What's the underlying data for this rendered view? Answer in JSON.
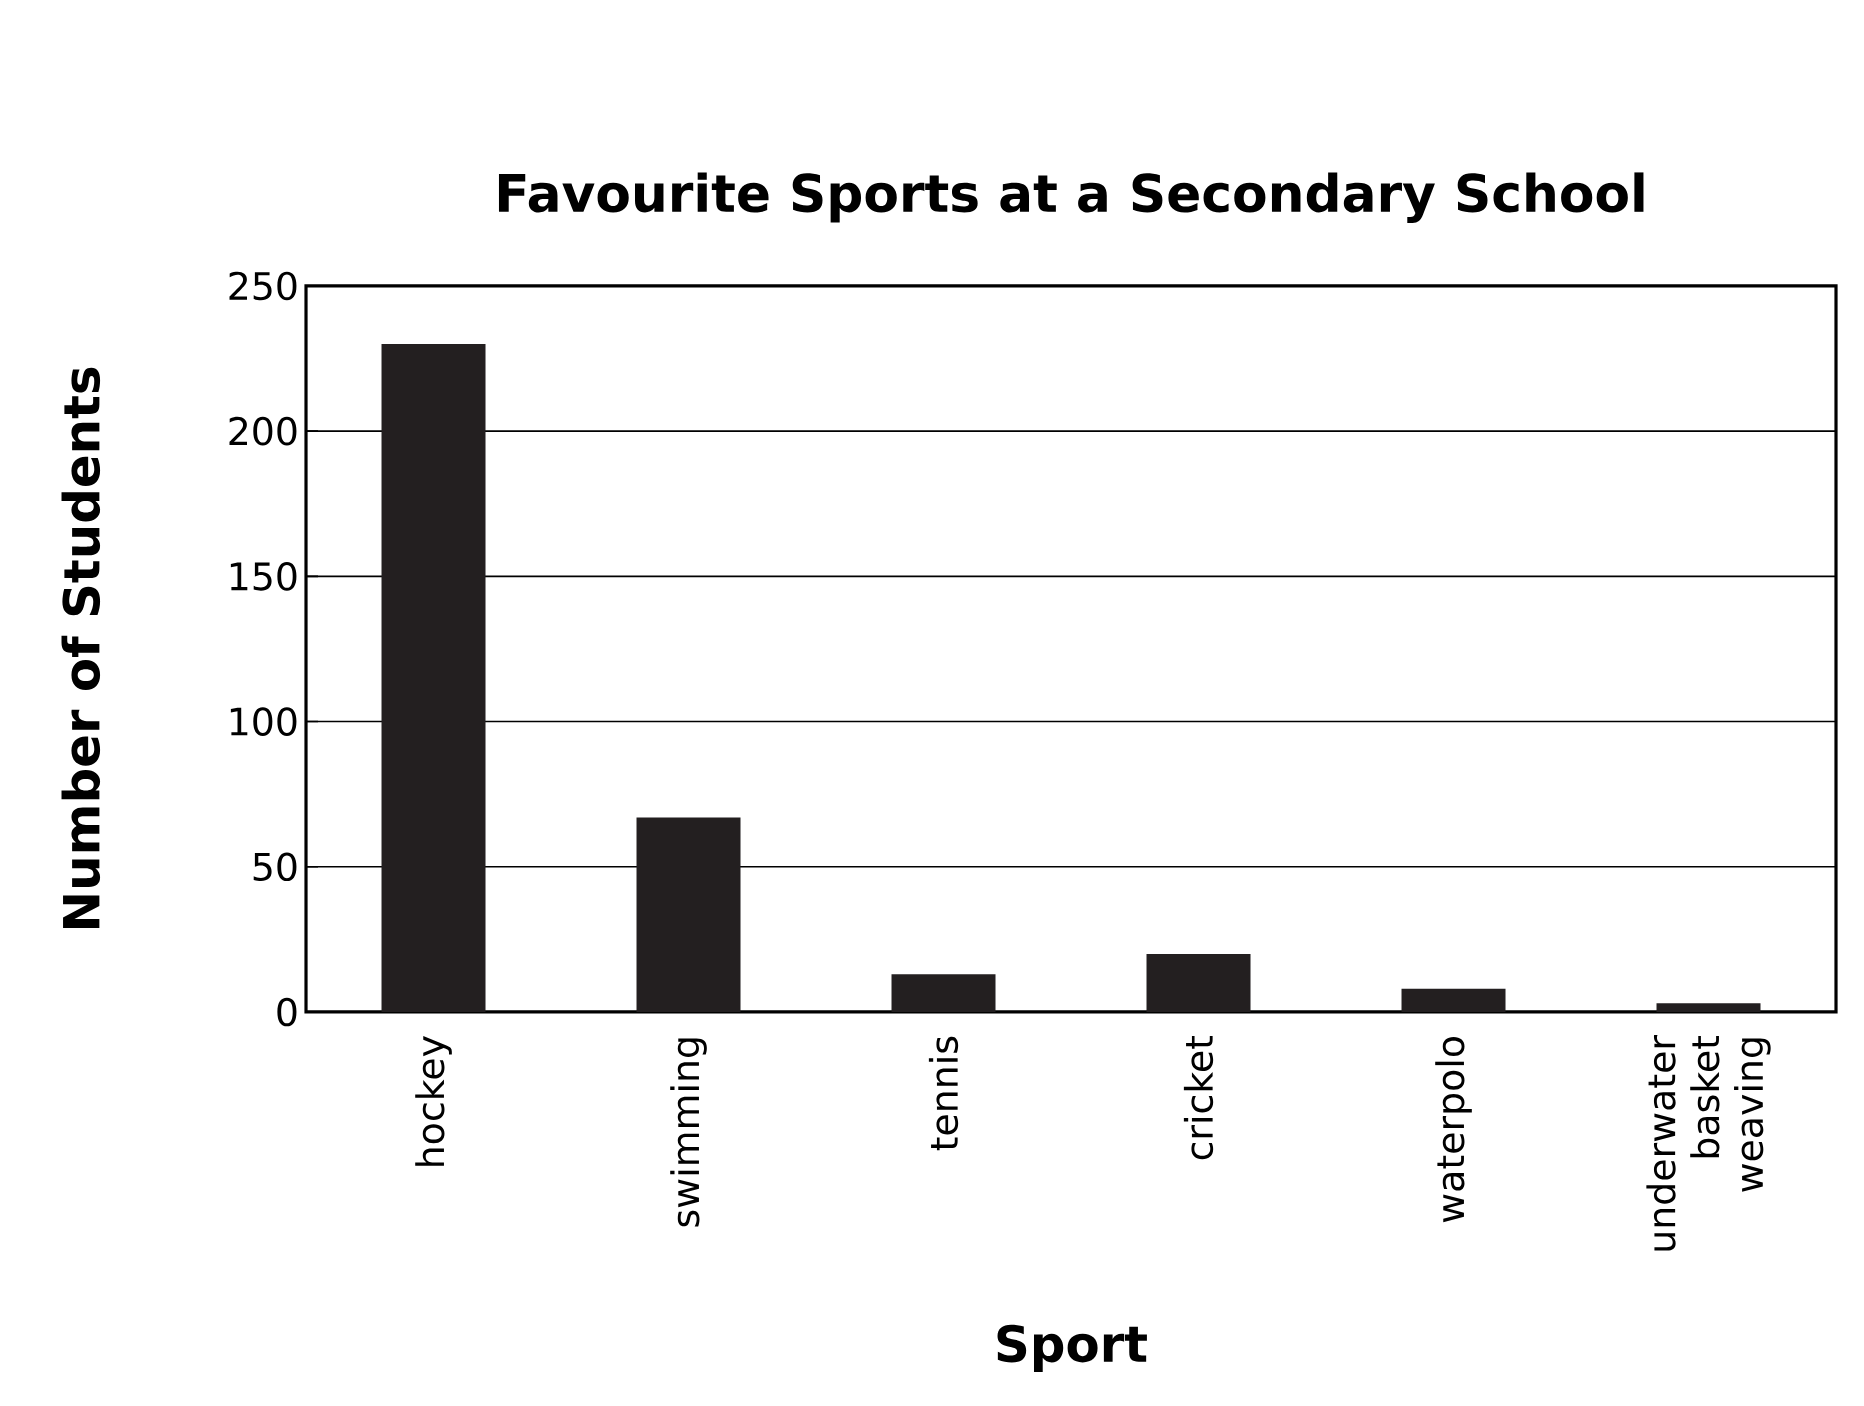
{
  "chart_data": {
    "type": "bar",
    "title": "Favourite Sports at a Secondary School",
    "xlabel": "Sport",
    "ylabel": "Number of Students",
    "categories": [
      "hockey",
      "swimming",
      "tennis",
      "cricket",
      "waterpolo",
      "underwater basket weaving"
    ],
    "values": [
      230,
      67,
      13,
      20,
      8,
      3
    ],
    "color": "#231f20",
    "ylim": [
      0,
      250
    ],
    "yticks": [
      0,
      50,
      100,
      150,
      200,
      250
    ],
    "grid": "y"
  }
}
